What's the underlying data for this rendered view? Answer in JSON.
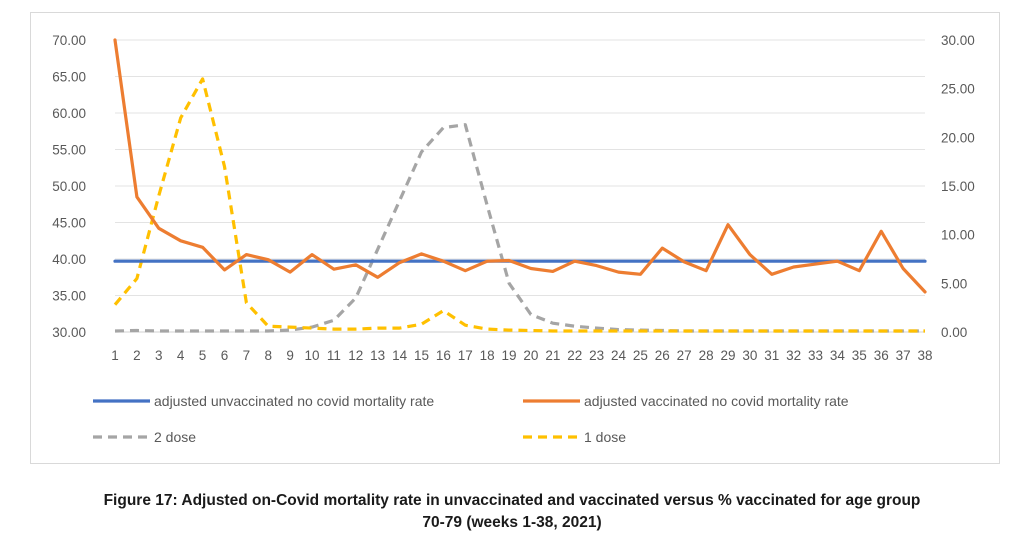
{
  "chart_data": {
    "type": "line",
    "title": "",
    "x": [
      1,
      2,
      3,
      4,
      5,
      6,
      7,
      8,
      9,
      10,
      11,
      12,
      13,
      14,
      15,
      16,
      17,
      18,
      19,
      20,
      21,
      22,
      23,
      24,
      25,
      26,
      27,
      28,
      29,
      30,
      31,
      32,
      33,
      34,
      35,
      36,
      37,
      38
    ],
    "y_left": {
      "range": [
        30,
        70
      ],
      "ticks": [
        "30.00",
        "35.00",
        "40.00",
        "45.00",
        "50.00",
        "55.00",
        "60.00",
        "65.00",
        "70.00"
      ]
    },
    "y_right": {
      "range": [
        0,
        30
      ],
      "ticks": [
        "0.00",
        "5.00",
        "10.00",
        "15.00",
        "20.00",
        "25.00",
        "30.00"
      ]
    },
    "grid": true,
    "legend_position": "bottom",
    "series": [
      {
        "name": "adjusted unvaccinated no covid mortality rate",
        "axis": "left",
        "color": "#4472C4",
        "dash": false,
        "values": [
          39.7,
          39.7,
          39.7,
          39.7,
          39.7,
          39.7,
          39.7,
          39.7,
          39.7,
          39.7,
          39.7,
          39.7,
          39.7,
          39.7,
          39.7,
          39.7,
          39.7,
          39.7,
          39.7,
          39.7,
          39.7,
          39.7,
          39.7,
          39.7,
          39.7,
          39.7,
          39.7,
          39.7,
          39.7,
          39.7,
          39.7,
          39.7,
          39.7,
          39.7,
          39.7,
          39.7,
          39.7,
          39.7
        ]
      },
      {
        "name": "adjusted vaccinated no covid mortality rate",
        "axis": "left",
        "color": "#ED7D31",
        "dash": false,
        "values": [
          70.0,
          48.5,
          44.2,
          42.5,
          41.6,
          38.5,
          40.6,
          39.9,
          38.2,
          40.6,
          38.6,
          39.2,
          37.5,
          39.5,
          40.7,
          39.7,
          38.4,
          39.7,
          39.8,
          38.7,
          38.3,
          39.7,
          39.1,
          38.2,
          37.9,
          41.5,
          39.6,
          38.4,
          44.7,
          40.6,
          37.9,
          38.9,
          39.3,
          39.7,
          38.4,
          43.8,
          38.7,
          35.5
        ]
      },
      {
        "name": "2 dose",
        "axis": "right",
        "color": "#A5A5A5",
        "dash": true,
        "values": [
          0.1,
          0.15,
          0.1,
          0.1,
          0.1,
          0.1,
          0.1,
          0.1,
          0.2,
          0.5,
          1.2,
          3.5,
          8.5,
          13.5,
          18.5,
          21.0,
          21.3,
          13.0,
          5.0,
          1.8,
          0.9,
          0.6,
          0.4,
          0.25,
          0.2,
          0.15,
          0.1,
          0.1,
          0.1,
          0.1,
          0.1,
          0.1,
          0.1,
          0.1,
          0.1,
          0.1,
          0.1,
          0.1
        ]
      },
      {
        "name": "1 dose",
        "axis": "right",
        "color": "#FFC000",
        "dash": true,
        "values": [
          2.8,
          5.5,
          14.0,
          22.0,
          26.0,
          17.0,
          3.0,
          0.6,
          0.5,
          0.4,
          0.3,
          0.3,
          0.4,
          0.4,
          0.8,
          2.2,
          0.7,
          0.3,
          0.2,
          0.15,
          0.1,
          0.1,
          0.1,
          0.1,
          0.1,
          0.1,
          0.1,
          0.1,
          0.1,
          0.1,
          0.1,
          0.1,
          0.1,
          0.1,
          0.1,
          0.1,
          0.1,
          0.1
        ]
      }
    ]
  },
  "caption": {
    "line1": "Figure 17: Adjusted on-Covid mortality rate in unvaccinated and vaccinated versus % vaccinated for age group",
    "line2": "70-79 (weeks 1-38, 2021)"
  }
}
